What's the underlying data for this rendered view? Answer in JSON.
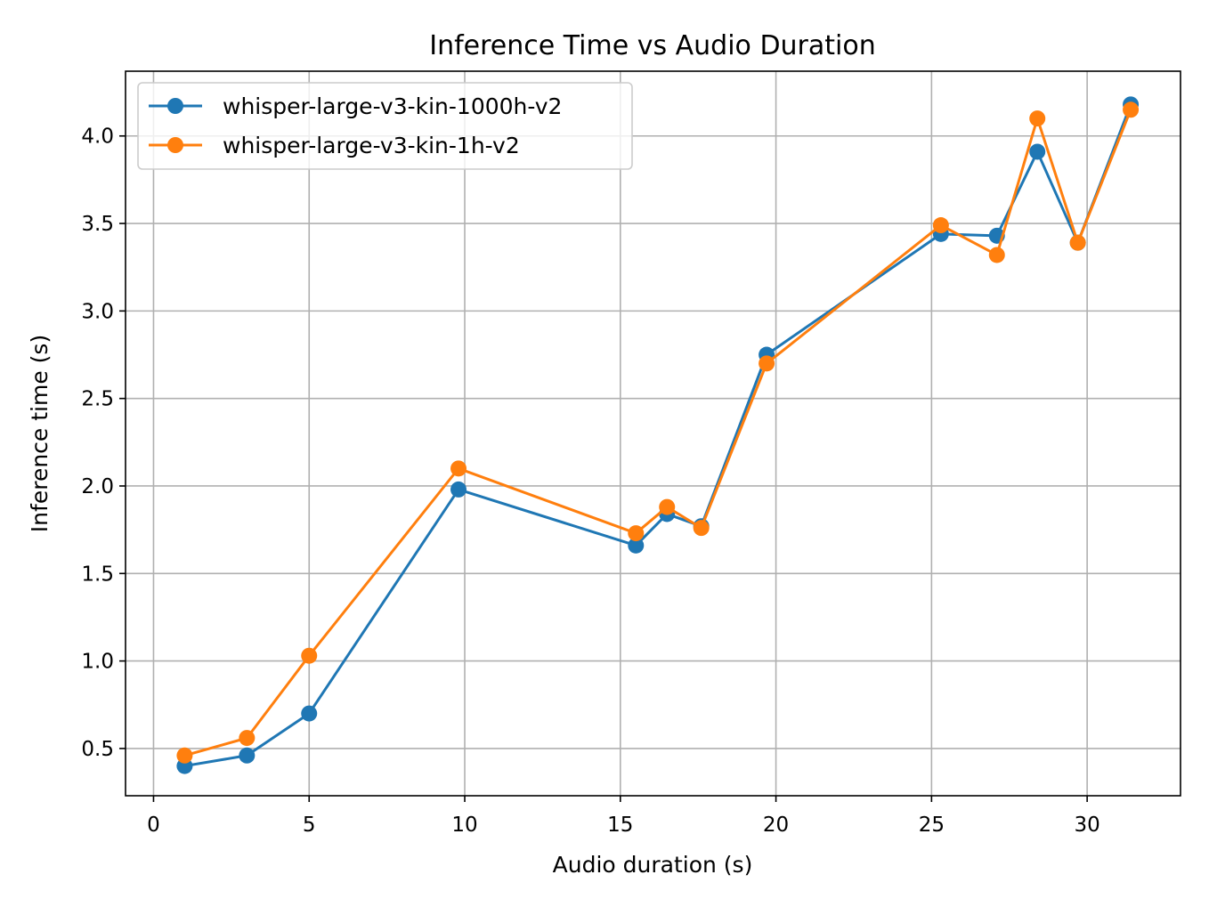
{
  "chart_data": {
    "type": "line",
    "title": "Inference Time vs Audio Duration",
    "xlabel": "Audio duration (s)",
    "ylabel": "Inference time (s)",
    "xlim": [
      -0.9,
      33
    ],
    "ylim": [
      0.23,
      4.37
    ],
    "xticks": [
      0,
      5,
      10,
      15,
      20,
      25,
      30
    ],
    "yticks": [
      0.5,
      1.0,
      1.5,
      2.0,
      2.5,
      3.0,
      3.5,
      4.0
    ],
    "xtick_labels": [
      "0",
      "5",
      "10",
      "15",
      "20",
      "25",
      "30"
    ],
    "ytick_labels": [
      "0.5",
      "1.0",
      "1.5",
      "2.0",
      "2.5",
      "3.0",
      "3.5",
      "4.0"
    ],
    "grid": true,
    "legend_position": "top-left",
    "series": [
      {
        "name": "whisper-large-v3-kin-1000h-v2",
        "color": "#1f77b4",
        "marker": "circle",
        "x": [
          1.0,
          3.0,
          5.0,
          9.8,
          15.5,
          16.5,
          17.6,
          19.7,
          25.3,
          27.1,
          28.4,
          29.7,
          31.4
        ],
        "y": [
          0.4,
          0.46,
          0.7,
          1.98,
          1.66,
          1.84,
          1.77,
          2.75,
          3.44,
          3.43,
          3.91,
          3.39,
          4.18
        ]
      },
      {
        "name": "whisper-large-v3-kin-1h-v2",
        "color": "#ff7f0e",
        "marker": "circle",
        "x": [
          1.0,
          3.0,
          5.0,
          9.8,
          15.5,
          16.5,
          17.6,
          19.7,
          25.3,
          27.1,
          28.4,
          29.7,
          31.4
        ],
        "y": [
          0.46,
          0.56,
          1.03,
          2.1,
          1.73,
          1.88,
          1.76,
          2.7,
          3.49,
          3.32,
          4.1,
          3.39,
          4.15
        ]
      }
    ]
  }
}
